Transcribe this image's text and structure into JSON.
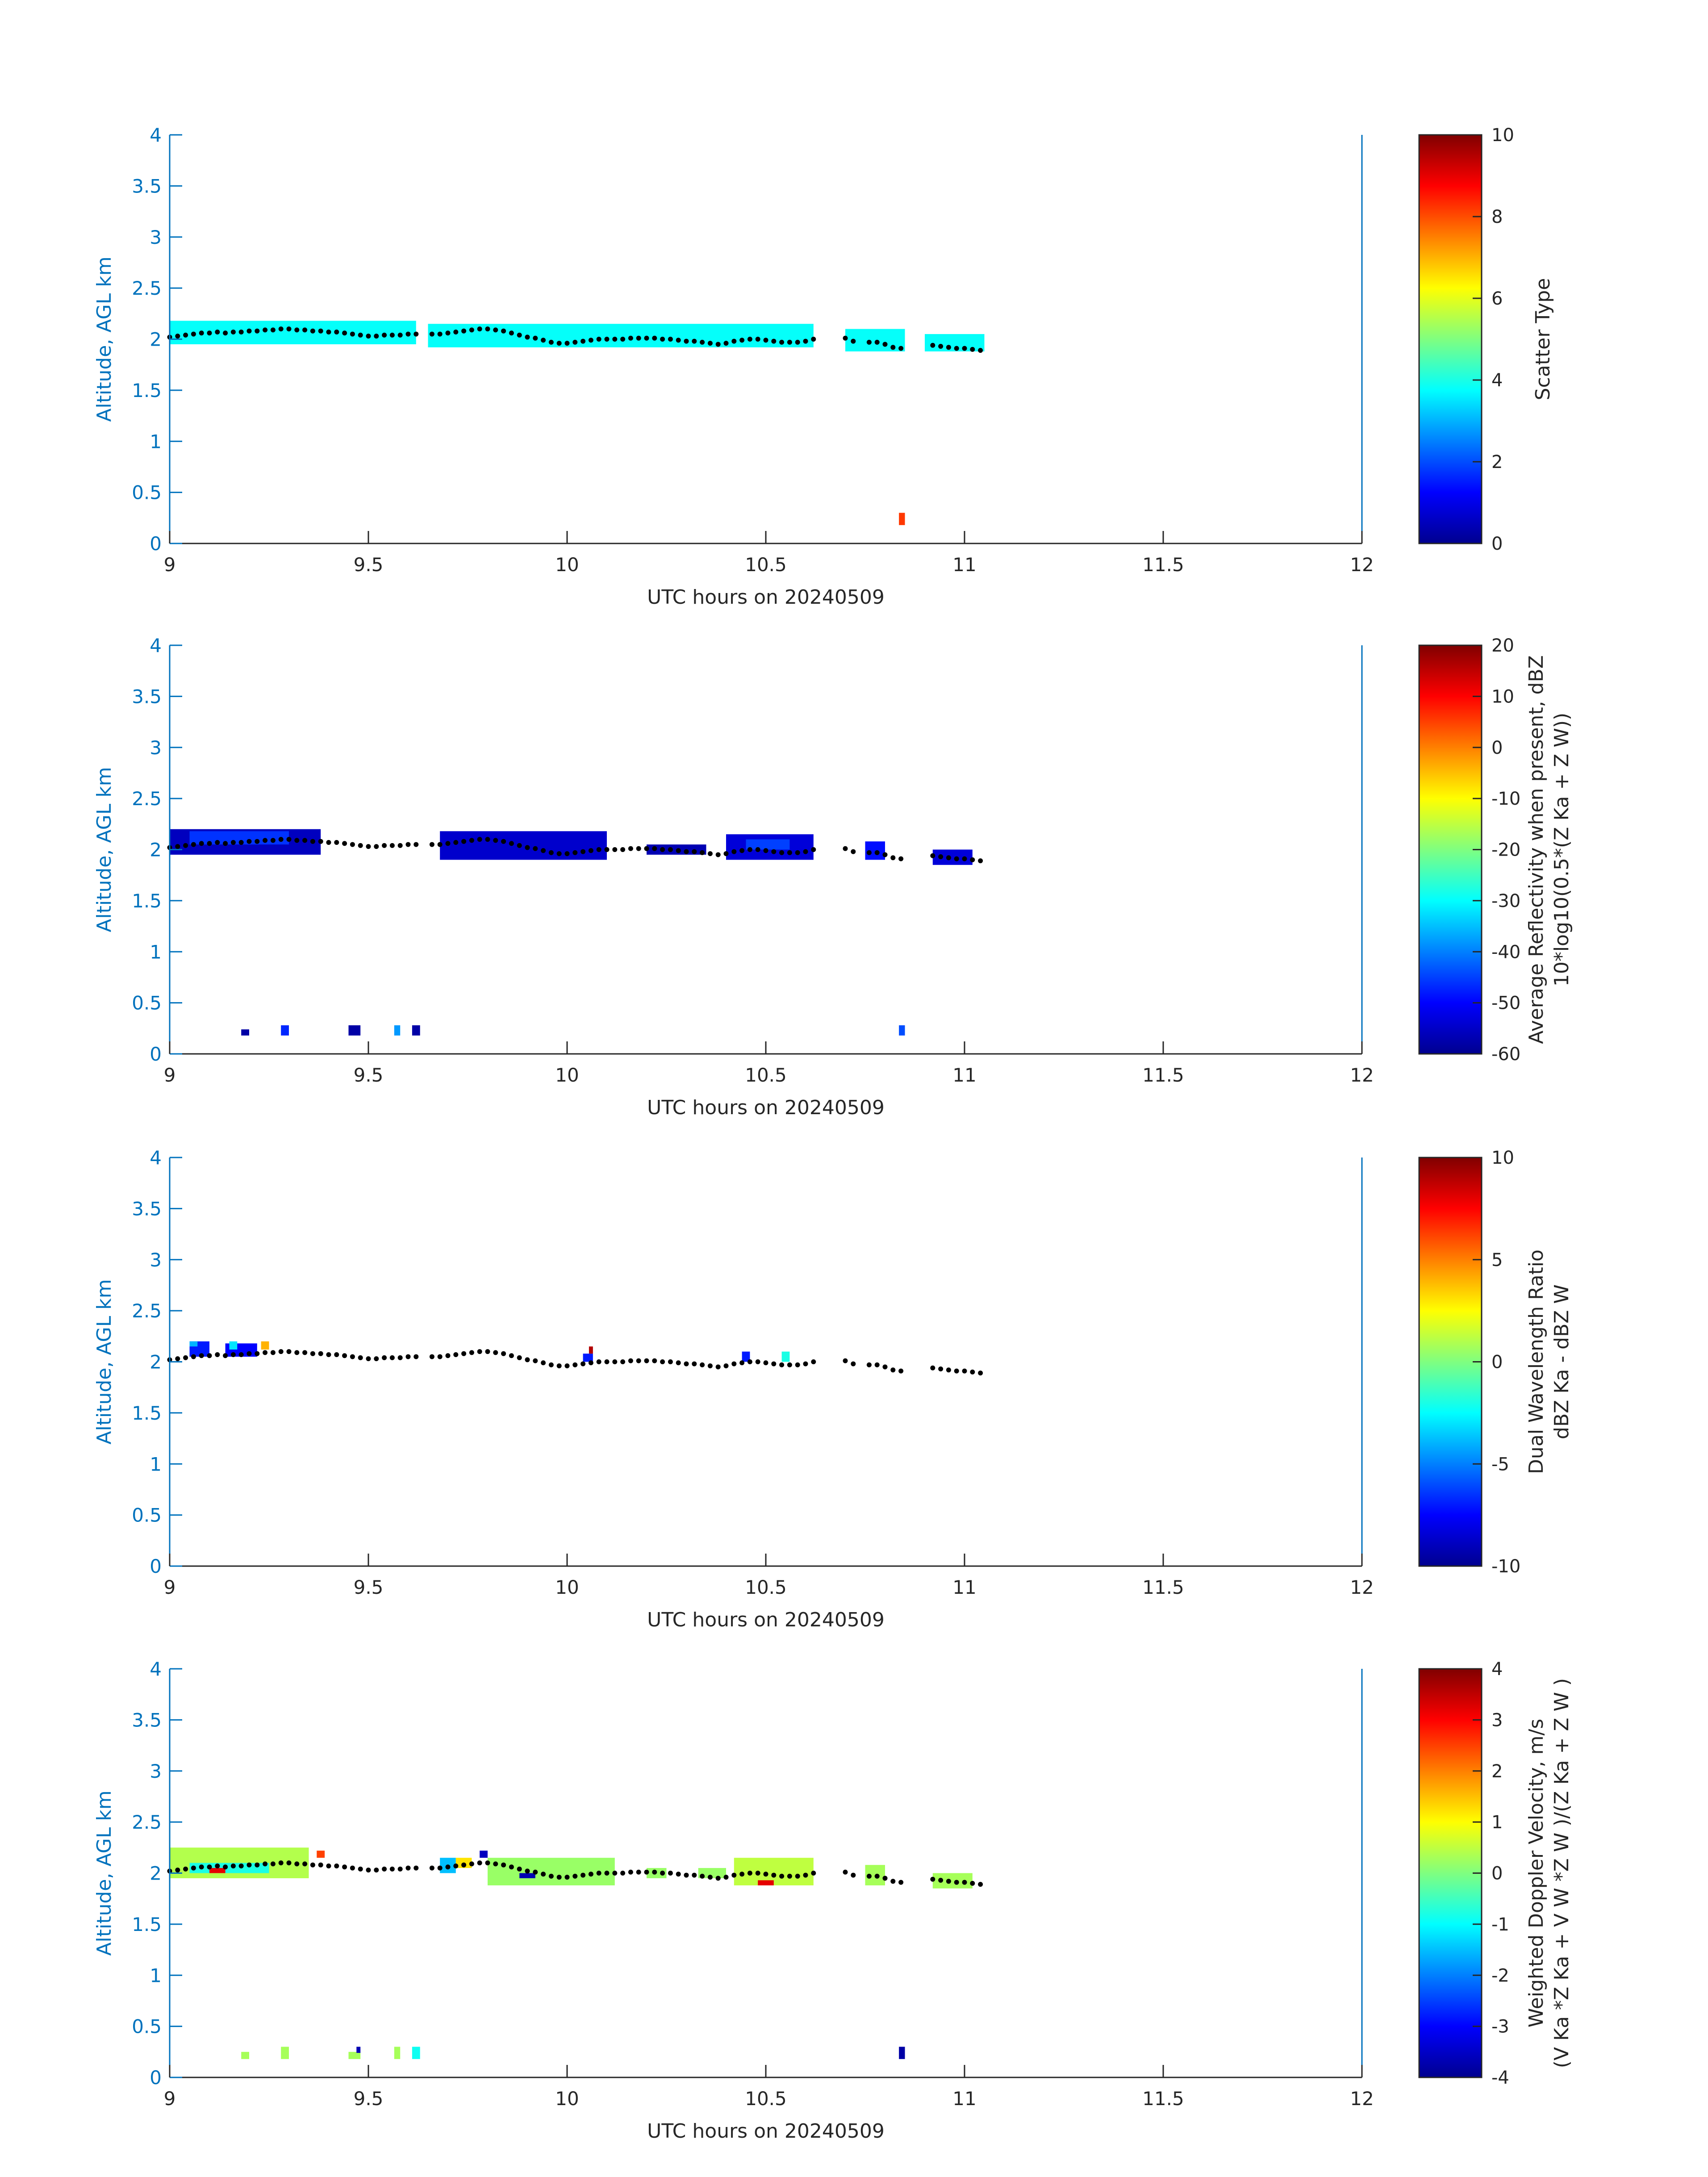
{
  "figure": {
    "x_label": "UTC hours on 20240509",
    "y_label": "Altitude, AGL km",
    "x_ticks": [
      "9",
      "9.5",
      "10",
      "10.5",
      "11",
      "11.5",
      "12"
    ],
    "y_ticks": [
      "0",
      "0.5",
      "1",
      "1.5",
      "2",
      "2.5",
      "3",
      "3.5",
      "4"
    ],
    "axis_color": "#0072BD",
    "text_color": "#262626",
    "cloud_base_dot_color": "#000000"
  },
  "chart_data": [
    {
      "type": "heatmap",
      "id": "scatter-type",
      "xlabel": "UTC hours on 20240509",
      "ylabel": "Altitude, AGL km",
      "xlim": [
        9,
        12
      ],
      "ylim": [
        0,
        4
      ],
      "colorbar": {
        "label": "Scatter Type",
        "label_line2": "",
        "range": [
          0,
          10
        ],
        "ticks": [
          "0",
          "2",
          "4",
          "6",
          "8",
          "10"
        ]
      },
      "cells": [
        {
          "x0": 9.0,
          "x1": 9.62,
          "y0": 1.95,
          "y1": 2.18,
          "value": 3.8
        },
        {
          "x0": 9.65,
          "x1": 10.62,
          "y0": 1.92,
          "y1": 2.15,
          "value": 3.8
        },
        {
          "x0": 10.7,
          "x1": 10.85,
          "y0": 1.88,
          "y1": 2.1,
          "value": 3.8
        },
        {
          "x0": 10.9,
          "x1": 11.05,
          "y0": 1.88,
          "y1": 2.05,
          "value": 3.8
        },
        {
          "x0": 10.835,
          "x1": 10.85,
          "y0": 0.18,
          "y1": 0.3,
          "value": 8.2
        }
      ]
    },
    {
      "type": "heatmap",
      "id": "reflectivity",
      "xlabel": "UTC hours on 20240509",
      "ylabel": "Altitude, AGL km",
      "xlim": [
        9,
        12
      ],
      "ylim": [
        0,
        4
      ],
      "colorbar": {
        "label": "Average Reflectivity when present, dBZ",
        "label_line2": "10*log10(0.5*(Z Ka + Z W))",
        "range": [
          -60,
          20
        ],
        "ticks": [
          "-60",
          "-50",
          "-40",
          "-30",
          "-20",
          "-10",
          "0",
          "10",
          "20"
        ]
      },
      "cells": [
        {
          "x0": 9.0,
          "x1": 9.38,
          "y0": 1.95,
          "y1": 2.2,
          "value": -55
        },
        {
          "x0": 9.05,
          "x1": 9.3,
          "y0": 2.05,
          "y1": 2.18,
          "value": -46
        },
        {
          "x0": 9.18,
          "x1": 9.2,
          "y0": 0.18,
          "y1": 0.24,
          "value": -57
        },
        {
          "x0": 9.28,
          "x1": 9.3,
          "y0": 0.18,
          "y1": 0.28,
          "value": -47
        },
        {
          "x0": 9.45,
          "x1": 9.48,
          "y0": 0.18,
          "y1": 0.28,
          "value": -57
        },
        {
          "x0": 9.565,
          "x1": 9.58,
          "y0": 0.18,
          "y1": 0.28,
          "value": -38
        },
        {
          "x0": 9.61,
          "x1": 9.63,
          "y0": 0.18,
          "y1": 0.28,
          "value": -57
        },
        {
          "x0": 9.68,
          "x1": 10.1,
          "y0": 1.9,
          "y1": 2.18,
          "value": -54
        },
        {
          "x0": 10.2,
          "x1": 10.35,
          "y0": 1.95,
          "y1": 2.05,
          "value": -56
        },
        {
          "x0": 10.4,
          "x1": 10.62,
          "y0": 1.9,
          "y1": 2.15,
          "value": -53
        },
        {
          "x0": 10.45,
          "x1": 10.56,
          "y0": 2.0,
          "y1": 2.1,
          "value": -45
        },
        {
          "x0": 10.75,
          "x1": 10.8,
          "y0": 1.9,
          "y1": 2.08,
          "value": -49
        },
        {
          "x0": 10.92,
          "x1": 11.02,
          "y0": 1.85,
          "y1": 2.0,
          "value": -53
        },
        {
          "x0": 10.835,
          "x1": 10.85,
          "y0": 0.18,
          "y1": 0.28,
          "value": -44
        }
      ]
    },
    {
      "type": "heatmap",
      "id": "dual-wavelength-ratio",
      "xlabel": "UTC hours on 20240509",
      "ylabel": "Altitude, AGL km",
      "xlim": [
        9,
        12
      ],
      "ylim": [
        0,
        4
      ],
      "colorbar": {
        "label": "Dual Wavelength Ratio",
        "label_line2": "dBZ Ka - dBZ W",
        "range": [
          -10,
          10
        ],
        "ticks": [
          "-10",
          "-5",
          "0",
          "5",
          "10"
        ]
      },
      "cells": [
        {
          "x0": 9.05,
          "x1": 9.1,
          "y0": 2.05,
          "y1": 2.2,
          "value": -7
        },
        {
          "x0": 9.05,
          "x1": 9.07,
          "y0": 2.15,
          "y1": 2.2,
          "value": -4
        },
        {
          "x0": 9.14,
          "x1": 9.22,
          "y0": 2.05,
          "y1": 2.18,
          "value": -7.5
        },
        {
          "x0": 9.15,
          "x1": 9.17,
          "y0": 2.12,
          "y1": 2.2,
          "value": -3
        },
        {
          "x0": 9.23,
          "x1": 9.25,
          "y0": 2.12,
          "y1": 2.2,
          "value": 4
        },
        {
          "x0": 10.04,
          "x1": 10.065,
          "y0": 2.0,
          "y1": 2.08,
          "value": -7
        },
        {
          "x0": 10.055,
          "x1": 10.065,
          "y0": 2.08,
          "y1": 2.15,
          "value": 9
        },
        {
          "x0": 10.44,
          "x1": 10.46,
          "y0": 2.0,
          "y1": 2.1,
          "value": -7
        },
        {
          "x0": 10.54,
          "x1": 10.56,
          "y0": 2.0,
          "y1": 2.1,
          "value": -2
        }
      ]
    },
    {
      "type": "heatmap",
      "id": "doppler-velocity",
      "xlabel": "UTC hours on 20240509",
      "ylabel": "Altitude, AGL km",
      "xlim": [
        9,
        12
      ],
      "ylim": [
        0,
        4
      ],
      "colorbar": {
        "label": "Weighted Doppler Velocity, m/s",
        "label_line2": "(V Ka *Z Ka + V W *Z W )/(Z Ka + Z W )",
        "range": [
          -4,
          4
        ],
        "ticks": [
          "-4",
          "-3",
          "-2",
          "-1",
          "0",
          "1",
          "2",
          "3",
          "4"
        ]
      },
      "cells": [
        {
          "x0": 9.0,
          "x1": 9.35,
          "y0": 1.95,
          "y1": 2.25,
          "value": 0.4
        },
        {
          "x0": 9.05,
          "x1": 9.25,
          "y0": 2.0,
          "y1": 2.1,
          "value": -0.8
        },
        {
          "x0": 9.1,
          "x1": 9.14,
          "y0": 2.0,
          "y1": 2.05,
          "value": 3.2
        },
        {
          "x0": 9.37,
          "x1": 9.39,
          "y0": 2.15,
          "y1": 2.22,
          "value": 2.5
        },
        {
          "x0": 9.18,
          "x1": 9.2,
          "y0": 0.18,
          "y1": 0.25,
          "value": 0.3
        },
        {
          "x0": 9.28,
          "x1": 9.3,
          "y0": 0.18,
          "y1": 0.3,
          "value": 0.3
        },
        {
          "x0": 9.45,
          "x1": 9.48,
          "y0": 0.18,
          "y1": 0.25,
          "value": 0.3
        },
        {
          "x0": 9.47,
          "x1": 9.48,
          "y0": 0.24,
          "y1": 0.3,
          "value": -3.6
        },
        {
          "x0": 9.565,
          "x1": 9.58,
          "y0": 0.18,
          "y1": 0.3,
          "value": 0.3
        },
        {
          "x0": 9.61,
          "x1": 9.63,
          "y0": 0.18,
          "y1": 0.3,
          "value": -0.9
        },
        {
          "x0": 9.68,
          "x1": 9.72,
          "y0": 2.0,
          "y1": 2.15,
          "value": -1.5
        },
        {
          "x0": 9.72,
          "x1": 9.76,
          "y0": 2.05,
          "y1": 2.15,
          "value": 1.2
        },
        {
          "x0": 9.78,
          "x1": 9.8,
          "y0": 2.15,
          "y1": 2.22,
          "value": -3.5
        },
        {
          "x0": 9.8,
          "x1": 10.12,
          "y0": 1.88,
          "y1": 2.15,
          "value": 0.2
        },
        {
          "x0": 9.88,
          "x1": 9.92,
          "y0": 1.95,
          "y1": 2.0,
          "value": -3.6
        },
        {
          "x0": 10.2,
          "x1": 10.25,
          "y0": 1.95,
          "y1": 2.05,
          "value": 0.2
        },
        {
          "x0": 10.33,
          "x1": 10.4,
          "y0": 1.95,
          "y1": 2.05,
          "value": 0.2
        },
        {
          "x0": 10.42,
          "x1": 10.62,
          "y0": 1.88,
          "y1": 2.15,
          "value": 0.5
        },
        {
          "x0": 10.48,
          "x1": 10.52,
          "y0": 1.88,
          "y1": 1.93,
          "value": 3.2
        },
        {
          "x0": 10.75,
          "x1": 10.8,
          "y0": 1.88,
          "y1": 2.08,
          "value": 0.3
        },
        {
          "x0": 10.92,
          "x1": 11.02,
          "y0": 1.85,
          "y1": 2.0,
          "value": 0.3
        },
        {
          "x0": 10.835,
          "x1": 10.85,
          "y0": 0.18,
          "y1": 0.3,
          "value": -3.7
        }
      ]
    }
  ],
  "cloud_base_dots": [
    [
      9.0,
      2.02
    ],
    [
      9.02,
      2.03
    ],
    [
      9.04,
      2.04
    ],
    [
      9.06,
      2.05
    ],
    [
      9.08,
      2.06
    ],
    [
      9.1,
      2.06
    ],
    [
      9.12,
      2.07
    ],
    [
      9.14,
      2.06
    ],
    [
      9.16,
      2.07
    ],
    [
      9.18,
      2.07
    ],
    [
      9.2,
      2.08
    ],
    [
      9.22,
      2.08
    ],
    [
      9.24,
      2.09
    ],
    [
      9.26,
      2.09
    ],
    [
      9.28,
      2.1
    ],
    [
      9.3,
      2.1
    ],
    [
      9.32,
      2.09
    ],
    [
      9.34,
      2.09
    ],
    [
      9.36,
      2.08
    ],
    [
      9.38,
      2.08
    ],
    [
      9.4,
      2.07
    ],
    [
      9.42,
      2.07
    ],
    [
      9.44,
      2.06
    ],
    [
      9.46,
      2.05
    ],
    [
      9.48,
      2.04
    ],
    [
      9.5,
      2.03
    ],
    [
      9.52,
      2.03
    ],
    [
      9.54,
      2.04
    ],
    [
      9.56,
      2.04
    ],
    [
      9.58,
      2.04
    ],
    [
      9.6,
      2.05
    ],
    [
      9.62,
      2.05
    ],
    [
      9.66,
      2.05
    ],
    [
      9.68,
      2.05
    ],
    [
      9.7,
      2.06
    ],
    [
      9.72,
      2.07
    ],
    [
      9.74,
      2.08
    ],
    [
      9.76,
      2.09
    ],
    [
      9.78,
      2.1
    ],
    [
      9.8,
      2.1
    ],
    [
      9.82,
      2.09
    ],
    [
      9.84,
      2.08
    ],
    [
      9.86,
      2.06
    ],
    [
      9.88,
      2.04
    ],
    [
      9.9,
      2.02
    ],
    [
      9.92,
      2.01
    ],
    [
      9.94,
      1.99
    ],
    [
      9.96,
      1.97
    ],
    [
      9.98,
      1.96
    ],
    [
      10.0,
      1.96
    ],
    [
      10.02,
      1.97
    ],
    [
      10.04,
      1.98
    ],
    [
      10.06,
      1.99
    ],
    [
      10.08,
      2.0
    ],
    [
      10.1,
      2.0
    ],
    [
      10.12,
      2.0
    ],
    [
      10.14,
      2.0
    ],
    [
      10.16,
      2.01
    ],
    [
      10.18,
      2.01
    ],
    [
      10.2,
      2.01
    ],
    [
      10.22,
      2.01
    ],
    [
      10.24,
      2.0
    ],
    [
      10.26,
      2.0
    ],
    [
      10.28,
      1.99
    ],
    [
      10.3,
      1.98
    ],
    [
      10.32,
      1.98
    ],
    [
      10.34,
      1.97
    ],
    [
      10.36,
      1.96
    ],
    [
      10.38,
      1.95
    ],
    [
      10.4,
      1.96
    ],
    [
      10.42,
      1.98
    ],
    [
      10.44,
      1.99
    ],
    [
      10.46,
      2.0
    ],
    [
      10.48,
      2.0
    ],
    [
      10.5,
      1.99
    ],
    [
      10.52,
      1.98
    ],
    [
      10.54,
      1.97
    ],
    [
      10.56,
      1.97
    ],
    [
      10.58,
      1.97
    ],
    [
      10.6,
      1.98
    ],
    [
      10.62,
      2.0
    ],
    [
      10.7,
      2.01
    ],
    [
      10.72,
      1.98
    ],
    [
      10.76,
      1.97
    ],
    [
      10.78,
      1.97
    ],
    [
      10.8,
      1.95
    ],
    [
      10.82,
      1.92
    ],
    [
      10.84,
      1.91
    ],
    [
      10.92,
      1.94
    ],
    [
      10.94,
      1.93
    ],
    [
      10.96,
      1.92
    ],
    [
      10.98,
      1.91
    ],
    [
      11.0,
      1.91
    ],
    [
      11.02,
      1.9
    ],
    [
      11.04,
      1.89
    ]
  ]
}
